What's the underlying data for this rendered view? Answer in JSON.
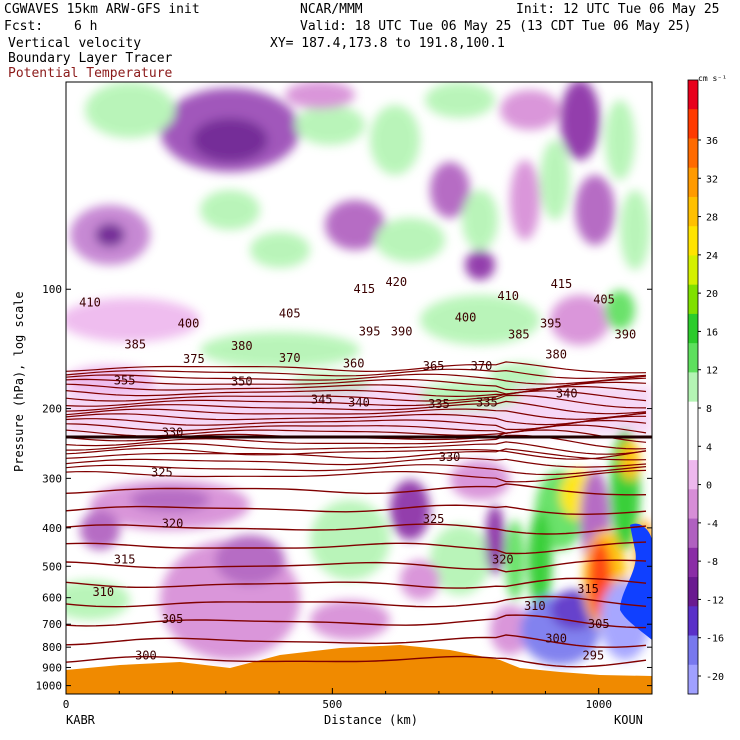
{
  "header": {
    "model": "CGWAVES 15km ARW-GFS init",
    "org": "NCAR/MMM",
    "init": "Init: 12 UTC Tue 06 May 25",
    "fcst_label": "Fcst:",
    "fcst_value": "6 h",
    "valid": "Valid: 18 UTC Tue 06 May 25 (13 CDT Tue 06 May 25)",
    "field1": "Vertical velocity",
    "field2": "Boundary Layer Tracer",
    "field3": "Potential Temperature",
    "xy": "XY= 187.4,173.8 to 191.8,100.1"
  },
  "colors": {
    "theta": "#800000",
    "field3_text": "#8b1a1a",
    "terrain": "#f08a00",
    "tracer": "#1040ff"
  },
  "chart_data": {
    "type": "heatmap",
    "title": "",
    "xlabel": "Distance (km)",
    "ylabel": "Pressure (hPa), log scale",
    "xlim": [
      0,
      1100
    ],
    "ylim": [
      1050,
      30
    ],
    "y_scale": "log",
    "x_ticks": [
      0,
      500,
      1000
    ],
    "x_tick_labels": [
      "0",
      "500",
      "1000"
    ],
    "x_endpoints": {
      "left": "KABR",
      "right": "KOUN"
    },
    "y_ticks": [
      100,
      200,
      300,
      400,
      500,
      600,
      700,
      800,
      900,
      1000
    ],
    "y_tick_labels": [
      "100",
      "200",
      "300",
      "400",
      "500",
      "600",
      "700",
      "800",
      "900",
      "1000"
    ],
    "colorbar": {
      "units": "cm s⁻¹",
      "labels": [
        36,
        32,
        28,
        24,
        20,
        16,
        12,
        8,
        4,
        0,
        -4,
        -8,
        -12,
        -16,
        -20
      ],
      "colors": [
        "#e8001c",
        "#ff3a00",
        "#ff6a00",
        "#ff9a00",
        "#ffc000",
        "#ffe400",
        "#d4f000",
        "#80e000",
        "#2ccc2c",
        "#5ee05e",
        "#b4f4b4",
        "#ffffff",
        "#ffffff",
        "#eeb8ee",
        "#d78ed7",
        "#b060c0",
        "#8a2da6",
        "#6a1a90",
        "#5a30c8",
        "#7878ee",
        "#a0a0ff"
      ]
    },
    "theta_label_values": [
      410,
      400,
      405,
      415,
      420,
      410,
      415,
      405,
      385,
      380,
      395,
      390,
      400,
      385,
      395,
      390,
      375,
      370,
      360,
      365,
      370,
      380,
      355,
      350,
      345,
      340,
      335,
      335,
      340,
      330,
      330,
      325,
      325,
      320,
      315,
      310,
      320,
      305,
      310,
      315,
      305,
      300,
      300,
      295
    ],
    "theta_labels": [
      {
        "text": "410",
        "x": 45,
        "p": 108
      },
      {
        "text": "400",
        "x": 230,
        "p": 122
      },
      {
        "text": "405",
        "x": 420,
        "p": 115
      },
      {
        "text": "415",
        "x": 560,
        "p": 100
      },
      {
        "text": "420",
        "x": 620,
        "p": 96
      },
      {
        "text": "410",
        "x": 830,
        "p": 104
      },
      {
        "text": "415",
        "x": 930,
        "p": 97
      },
      {
        "text": "405",
        "x": 1010,
        "p": 106
      },
      {
        "text": "385",
        "x": 130,
        "p": 138
      },
      {
        "text": "380",
        "x": 330,
        "p": 139
      },
      {
        "text": "395",
        "x": 570,
        "p": 128
      },
      {
        "text": "390",
        "x": 630,
        "p": 128
      },
      {
        "text": "400",
        "x": 750,
        "p": 118
      },
      {
        "text": "385",
        "x": 850,
        "p": 130
      },
      {
        "text": "395",
        "x": 910,
        "p": 122
      },
      {
        "text": "390",
        "x": 1050,
        "p": 130
      },
      {
        "text": "375",
        "x": 240,
        "p": 150
      },
      {
        "text": "370",
        "x": 420,
        "p": 149
      },
      {
        "text": "360",
        "x": 540,
        "p": 154
      },
      {
        "text": "365",
        "x": 690,
        "p": 156
      },
      {
        "text": "370",
        "x": 780,
        "p": 156
      },
      {
        "text": "380",
        "x": 920,
        "p": 146
      },
      {
        "text": "355",
        "x": 110,
        "p": 170
      },
      {
        "text": "350",
        "x": 330,
        "p": 171
      },
      {
        "text": "345",
        "x": 480,
        "p": 190
      },
      {
        "text": "340",
        "x": 550,
        "p": 193
      },
      {
        "text": "335",
        "x": 700,
        "p": 195
      },
      {
        "text": "335",
        "x": 790,
        "p": 193
      },
      {
        "text": "340",
        "x": 940,
        "p": 183
      },
      {
        "text": "330",
        "x": 200,
        "p": 230
      },
      {
        "text": "330",
        "x": 720,
        "p": 265
      },
      {
        "text": "325",
        "x": 180,
        "p": 290
      },
      {
        "text": "325",
        "x": 690,
        "p": 380
      },
      {
        "text": "320",
        "x": 200,
        "p": 390
      },
      {
        "text": "315",
        "x": 110,
        "p": 480
      },
      {
        "text": "310",
        "x": 70,
        "p": 580
      },
      {
        "text": "320",
        "x": 820,
        "p": 480
      },
      {
        "text": "305",
        "x": 200,
        "p": 680
      },
      {
        "text": "310",
        "x": 880,
        "p": 630
      },
      {
        "text": "315",
        "x": 980,
        "p": 570
      },
      {
        "text": "305",
        "x": 1000,
        "p": 700
      },
      {
        "text": "300",
        "x": 150,
        "p": 840
      },
      {
        "text": "300",
        "x": 920,
        "p": 760
      },
      {
        "text": "295",
        "x": 990,
        "p": 840
      }
    ]
  }
}
